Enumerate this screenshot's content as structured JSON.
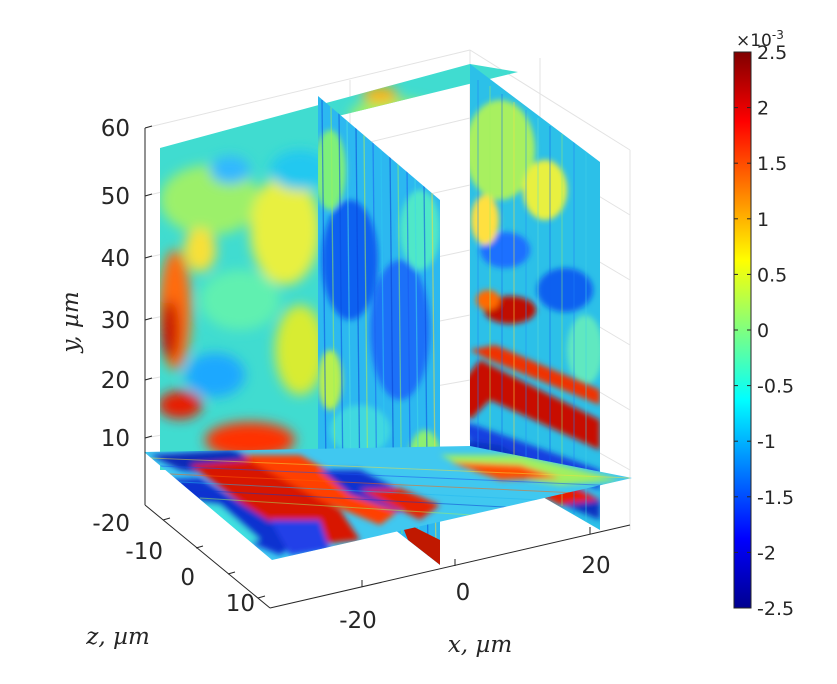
{
  "chart_data": {
    "type": "heatmap",
    "title": "",
    "subtitle": "",
    "plot_kind": "3D orthogonal slice contour plot (two vertical x-slices, one horizontal y-slice)",
    "xlabel": "x, µm",
    "ylabel": "y, µm",
    "zlabel": "z, µm",
    "x_ticks": [
      "-20",
      "0",
      "20"
    ],
    "y_ticks": [
      "10",
      "20",
      "30",
      "40",
      "50",
      "60"
    ],
    "z_ticks": [
      "-20",
      "-10",
      "0",
      "10"
    ],
    "xlim": [
      -33,
      33
    ],
    "ylim": [
      0,
      60
    ],
    "zlim": [
      -20,
      17
    ],
    "grid": true,
    "colormap": "jet",
    "colorbar": {
      "exponent_base": "×10",
      "exponent_power": "-3",
      "range": [
        -2.5,
        2.5
      ],
      "levels": 20,
      "tick_labels": [
        "2.5",
        "2",
        "1.5",
        "1",
        "0.5",
        "0",
        "-0.5",
        "-1",
        "-1.5",
        "-2",
        "-2.5"
      ],
      "position": "right"
    },
    "slice_summary": [
      {
        "slice": "back plane",
        "range": [
          -0.8,
          1.2
        ],
        "dominant": "cyan / light green"
      },
      {
        "slice": "vertical x-slice",
        "range": [
          -2.0,
          0.8
        ],
        "dominant": "blue / cyan streaks"
      },
      {
        "slice": "right x-slice",
        "range": [
          -1.5,
          2.5
        ],
        "dominant": "red diagonal bands"
      },
      {
        "slice": "horizontal y-slice",
        "range": [
          -2.5,
          2.5
        ],
        "dominant": "red / blue stripes"
      }
    ]
  }
}
